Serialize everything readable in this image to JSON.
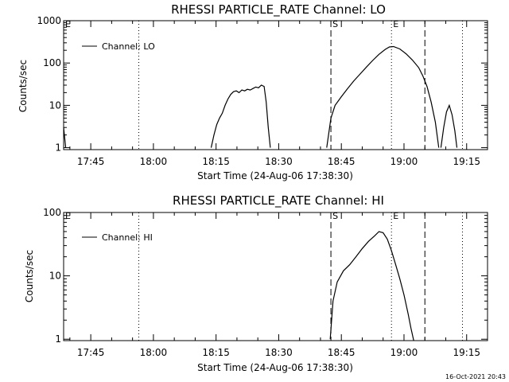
{
  "footer": {
    "timestamp": "16-Oct-2021 20:43"
  },
  "chart_data": [
    {
      "type": "line",
      "title": "RHESSI PARTICLE_RATE Channel: LO",
      "xlabel": "Start Time (24-Aug-06 17:38:30)",
      "ylabel": "Counts/sec",
      "yscale": "log",
      "ylim": [
        0.9,
        1000
      ],
      "xlim": [
        "17:38:30",
        "19:20:00"
      ],
      "x_ticks": [
        "17:45",
        "18:00",
        "18:15",
        "18:30",
        "18:45",
        "19:00",
        "19:15"
      ],
      "y_ticks": [
        "1",
        "10",
        "100",
        "1000"
      ],
      "legend": {
        "position": "top-left",
        "entries": [
          "Channel: LO"
        ]
      },
      "grid": false,
      "markers": [
        {
          "label": "E",
          "time": "17:38:30",
          "style": "dotted"
        },
        {
          "label": "",
          "time": "17:56:30",
          "style": "dotted"
        },
        {
          "label": "S",
          "time": "18:42:30",
          "style": "dashed"
        },
        {
          "label": "E",
          "time": "18:57:00",
          "style": "dotted"
        },
        {
          "label": "",
          "time": "19:05:00",
          "style": "dashed"
        },
        {
          "label": "",
          "time": "19:14:00",
          "style": "dotted"
        }
      ],
      "series": [
        {
          "name": "Channel: LO",
          "segments": [
            {
              "x": [
                "17:38:30",
                "17:39:00"
              ],
              "y": [
                3,
                1
              ]
            },
            {
              "x": [
                "18:13:50",
                "18:14:30",
                "18:15:10",
                "18:15:50",
                "18:16:30",
                "18:17:10",
                "18:17:50",
                "18:18:30",
                "18:19:10",
                "18:19:50",
                "18:20:30",
                "18:21:10",
                "18:21:50",
                "18:22:30",
                "18:23:10",
                "18:23:50",
                "18:24:30",
                "18:25:10",
                "18:25:50",
                "18:26:30",
                "18:27:00",
                "18:27:30",
                "18:28:00"
              ],
              "y": [
                1,
                2,
                3.5,
                5,
                6.5,
                10,
                14,
                18,
                21,
                22,
                20,
                23,
                22,
                24,
                23,
                25,
                27,
                26,
                30,
                28,
                12,
                3,
                1
              ]
            },
            {
              "x": [
                "18:41:30",
                "18:42:30",
                "18:43:30",
                "18:45:00",
                "18:46:30",
                "18:48:00",
                "18:49:30",
                "18:51:00",
                "18:52:30",
                "18:54:00",
                "18:55:30",
                "18:56:30",
                "18:57:30",
                "18:59:00",
                "19:00:30",
                "19:02:00",
                "19:03:30",
                "19:04:30",
                "19:05:30",
                "19:06:30",
                "19:07:30",
                "19:08:20"
              ],
              "y": [
                1,
                5,
                10,
                16,
                25,
                38,
                55,
                80,
                115,
                160,
                210,
                240,
                245,
                215,
                165,
                118,
                78,
                50,
                28,
                12,
                4,
                1
              ]
            },
            {
              "x": [
                "19:08:50",
                "19:09:30",
                "19:10:10",
                "19:10:50",
                "19:11:30",
                "19:12:10",
                "19:12:40"
              ],
              "y": [
                1,
                3,
                7,
                10,
                6,
                2.5,
                1
              ]
            }
          ]
        }
      ]
    },
    {
      "type": "line",
      "title": "RHESSI PARTICLE_RATE Channel: HI",
      "xlabel": "Start Time (24-Aug-06 17:38:30)",
      "ylabel": "Counts/sec",
      "yscale": "log",
      "ylim": [
        0.95,
        100
      ],
      "xlim": [
        "17:38:30",
        "19:20:00"
      ],
      "x_ticks": [
        "17:45",
        "18:00",
        "18:15",
        "18:30",
        "18:45",
        "19:00",
        "19:15"
      ],
      "y_ticks": [
        "1",
        "10",
        "100"
      ],
      "legend": {
        "position": "top-left",
        "entries": [
          "Channel: HI"
        ]
      },
      "grid": false,
      "markers": [
        {
          "label": "E",
          "time": "17:38:30",
          "style": "dotted"
        },
        {
          "label": "",
          "time": "17:56:30",
          "style": "dotted"
        },
        {
          "label": "S",
          "time": "18:42:30",
          "style": "dashed"
        },
        {
          "label": "E",
          "time": "18:57:00",
          "style": "dotted"
        },
        {
          "label": "",
          "time": "19:05:00",
          "style": "dashed"
        },
        {
          "label": "",
          "time": "19:14:00",
          "style": "dotted"
        }
      ],
      "series": [
        {
          "name": "Channel: HI",
          "segments": [
            {
              "x": [
                "18:42:20",
                "18:43:00",
                "18:44:00",
                "18:45:30",
                "18:47:00",
                "18:48:30",
                "18:50:00",
                "18:51:30",
                "18:53:00",
                "18:54:00",
                "18:55:00",
                "18:56:00",
                "18:57:00",
                "18:58:00",
                "18:59:00",
                "19:00:00",
                "19:01:00",
                "19:01:40",
                "19:02:20"
              ],
              "y": [
                1,
                4,
                8,
                12,
                15,
                20,
                27,
                35,
                43,
                50,
                48,
                38,
                25,
                15,
                9,
                5,
                2.5,
                1.5,
                0.95
              ]
            }
          ]
        }
      ]
    }
  ]
}
